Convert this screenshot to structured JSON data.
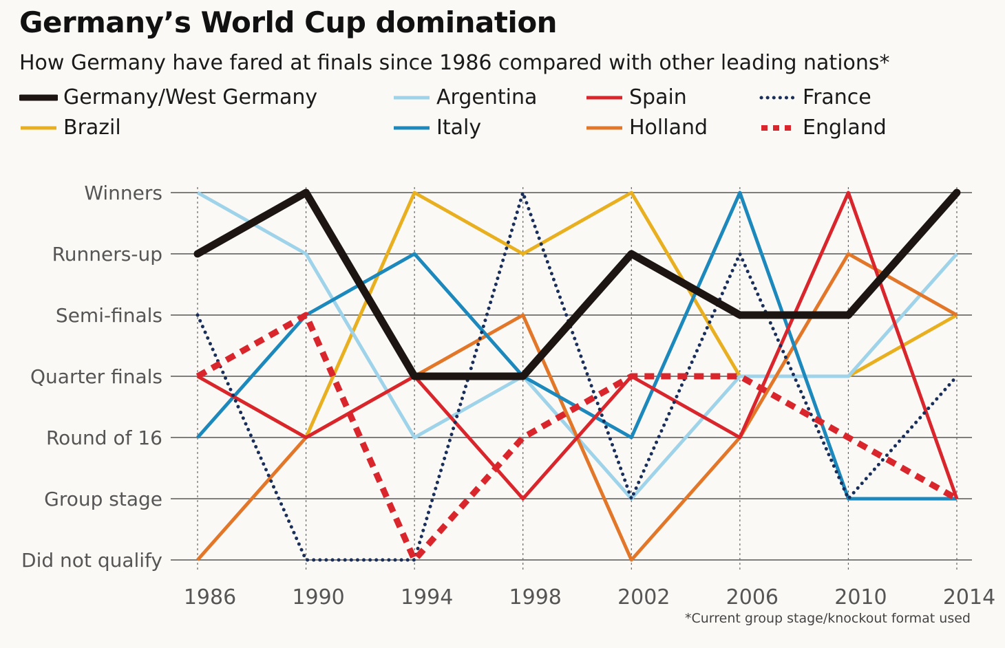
{
  "chart_data": {
    "type": "line",
    "title": "Germany’s World Cup domination",
    "subtitle": "How Germany have fared at finals since 1986 compared with other leading nations*",
    "footnote": "*Current group stage/knockout format used",
    "x": [
      "1986",
      "1990",
      "1994",
      "1998",
      "2002",
      "2006",
      "2010",
      "2014"
    ],
    "y_categories": [
      "Did not qualify",
      "Group stage",
      "Round of 16",
      "Quarter finals",
      "Semi-finals",
      "Runners-up",
      "Winners"
    ],
    "ylim": [
      0,
      6
    ],
    "grid": true,
    "legend_position": "top",
    "series": [
      {
        "name": "Brazil",
        "color": "#e8b020",
        "style": "solid",
        "values": [
          3,
          2,
          6,
          5,
          6,
          3,
          3,
          4
        ]
      },
      {
        "name": "Argentina",
        "color": "#9fd3ea",
        "style": "solid",
        "values": [
          6,
          5,
          2,
          3,
          1,
          3,
          3,
          5
        ]
      },
      {
        "name": "Holland",
        "color": "#e2772a",
        "style": "solid",
        "values": [
          0,
          2,
          3,
          4,
          0,
          2,
          5,
          4
        ]
      },
      {
        "name": "Italy",
        "color": "#1c88bb",
        "style": "solid",
        "values": [
          2,
          4,
          5,
          3,
          2,
          6,
          1,
          1
        ]
      },
      {
        "name": "Spain",
        "color": "#d9252c",
        "style": "solid",
        "values": [
          3,
          2,
          3,
          1,
          3,
          2,
          6,
          1
        ]
      },
      {
        "name": "France",
        "color": "#1a2e5a",
        "style": "dotted",
        "values": [
          4,
          0,
          0,
          6,
          1,
          5,
          1,
          3
        ]
      },
      {
        "name": "England",
        "color": "#d9252c",
        "style": "dashed",
        "values": [
          3,
          4,
          0,
          2,
          3,
          3,
          2,
          1
        ]
      },
      {
        "name": "Germany/West Germany",
        "color": "#1d1512",
        "style": "solid-thick",
        "values": [
          5,
          6,
          3,
          3,
          5,
          4,
          4,
          6
        ]
      }
    ]
  }
}
